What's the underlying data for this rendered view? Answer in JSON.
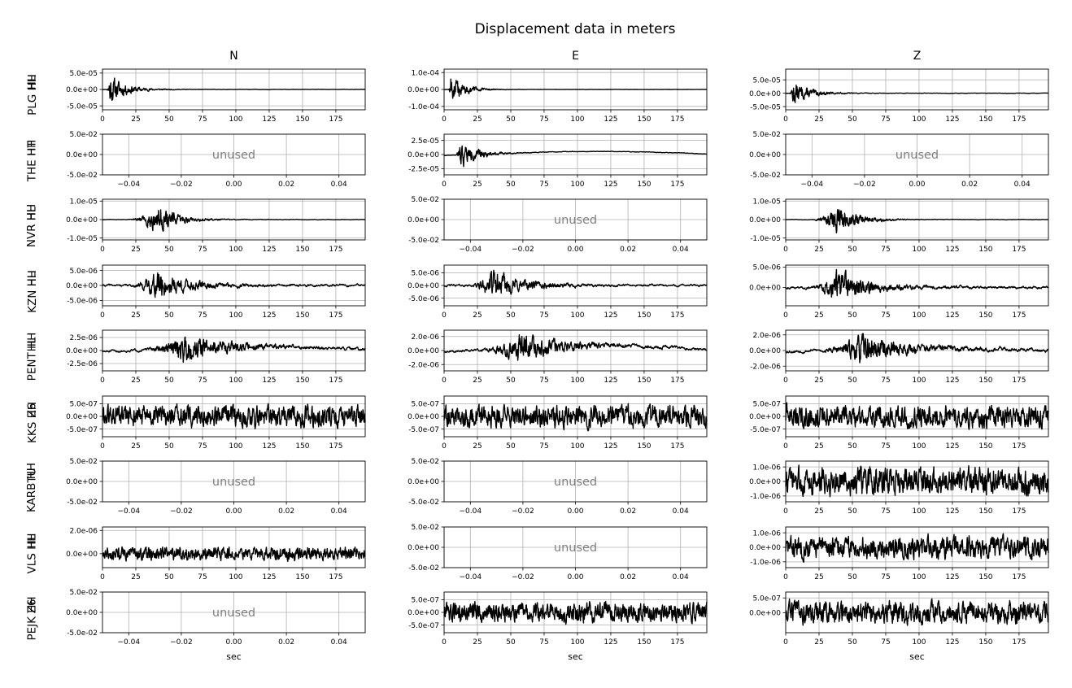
{
  "title": "Displacement data in meters",
  "columns": [
    "N",
    "E",
    "Z"
  ],
  "xlabel": "sec",
  "unused_label": "unused",
  "colors": {
    "trace": "#000000",
    "grid": "#b0b0b0",
    "unused_text": "#808080"
  },
  "chart_data": {
    "type": "line",
    "title": "Displacement data in meters",
    "xlabel": "sec",
    "ylabel": "",
    "grid": true,
    "time_axis_ticks": [
      0,
      25,
      50,
      75,
      100,
      125,
      150,
      175
    ],
    "time_axis_range": [
      0,
      197
    ],
    "unused_axis_ticks": [
      -0.04,
      -0.02,
      0.0,
      0.02,
      0.04
    ],
    "unused_axis_range": [
      -0.05,
      0.05
    ],
    "unused_y_ticks": [
      "5.0e-02",
      "0.0e+00",
      "-5.0e-02"
    ],
    "unused_y_range": [
      -0.05,
      0.05
    ],
    "stations": [
      {
        "network": "HL",
        "station": "PLG HH"
      },
      {
        "network": "HT",
        "station": "THE HH"
      },
      {
        "network": "HL",
        "station": "NVR HH"
      },
      {
        "network": "HL",
        "station": "KZN HH"
      },
      {
        "network": "HL",
        "station": "PENT HH"
      },
      {
        "network": "Z6",
        "station": "KKS HH"
      },
      {
        "network": "TU",
        "station": "KARB HH"
      },
      {
        "network": "HL",
        "station": "VLS HH"
      },
      {
        "network": "Z6",
        "station": "PEJK HH"
      }
    ],
    "panels": [
      [
        {
          "used": true,
          "yticks": [
            "5.0e-05",
            "0.0e+00",
            "-5.0e-05"
          ],
          "ytick_values": [
            5e-05,
            0,
            -5e-05
          ],
          "ylim": [
            -6.2e-05,
            6.2e-05
          ],
          "peak_time": 5,
          "peak_amp": 6e-05,
          "decay": 12,
          "onset": 3,
          "noise": 0.015,
          "drift": 0,
          "seed": 11
        },
        {
          "used": false
        },
        {
          "used": true,
          "yticks": [
            "1.0e-05",
            "0.0e+00",
            "-1.0e-05"
          ],
          "ytick_values": [
            1e-05,
            0,
            -1e-05
          ],
          "ylim": [
            -1.1e-05,
            1.1e-05
          ],
          "peak_time": 40,
          "peak_amp": 1.05e-05,
          "decay": 15,
          "onset": 18,
          "noise": 0.02,
          "drift": 0,
          "seed": 31
        },
        {
          "used": true,
          "yticks": [
            "5.0e-06",
            "0.0e+00",
            "-5.0e-06"
          ],
          "ytick_values": [
            5e-06,
            0,
            -5e-06
          ],
          "ylim": [
            -6.8e-06,
            6.8e-06
          ],
          "peak_time": 40,
          "peak_amp": 6.5e-06,
          "decay": 22,
          "onset": 20,
          "noise": 0.1,
          "drift": 0,
          "seed": 41
        },
        {
          "used": true,
          "yticks": [
            "2.5e-06",
            "0.0e+00",
            "-2.5e-06"
          ],
          "ytick_values": [
            2.5e-06,
            0,
            -2.5e-06
          ],
          "ylim": [
            -3.9e-06,
            3.9e-06
          ],
          "peak_time": 60,
          "peak_amp": 3.5e-06,
          "decay": 30,
          "onset": 30,
          "noise": 0.12,
          "drift": 0.2,
          "seed": 51
        },
        {
          "used": true,
          "yticks": [
            "5.0e-07",
            "0.0e+00",
            "-5.0e-07"
          ],
          "ytick_values": [
            5e-07,
            0,
            -5e-07
          ],
          "ylim": [
            -8e-07,
            8e-07
          ],
          "peak_time": 0,
          "peak_amp": 0,
          "decay": 1,
          "onset": 0,
          "noise": 0.6,
          "drift": 0,
          "seed": 61
        },
        {
          "used": false
        },
        {
          "used": true,
          "yticks": [
            "2.0e-06",
            "0.0e+00"
          ],
          "ytick_values": [
            2e-06,
            0
          ],
          "ylim": [
            -1.2e-06,
            2.3e-06
          ],
          "peak_time": 0,
          "peak_amp": 0,
          "decay": 1,
          "onset": 0,
          "noise": 0.28,
          "drift": 0,
          "seed": 81
        },
        {
          "used": false
        }
      ],
      [
        {
          "used": true,
          "yticks": [
            "1.0e-04",
            "0.0e+00",
            "-1.0e-04"
          ],
          "ytick_values": [
            0.0001,
            0,
            -0.0001
          ],
          "ylim": [
            -0.00012,
            0.00012
          ],
          "peak_time": 5,
          "peak_amp": 0.000115,
          "decay": 10,
          "onset": 3,
          "noise": 0.01,
          "drift": 0,
          "seed": 12
        },
        {
          "used": true,
          "yticks": [
            "2.5e-05",
            "0.0e+00",
            "-2.5e-05"
          ],
          "ytick_values": [
            2.5e-05,
            0,
            -2.5e-05
          ],
          "ylim": [
            -3.6e-05,
            3.6e-05
          ],
          "peak_time": 12,
          "peak_amp": 3e-05,
          "decay": 12,
          "onset": 8,
          "noise": 0.02,
          "drift": 0.15,
          "seed": 22
        },
        {
          "used": false
        },
        {
          "used": true,
          "yticks": [
            "5.0e-06",
            "0.0e+00",
            "-5.0e-06"
          ],
          "ytick_values": [
            5e-06,
            0,
            -5e-06
          ],
          "ylim": [
            -8e-06,
            8e-06
          ],
          "peak_time": 35,
          "peak_amp": 7.5e-06,
          "decay": 22,
          "onset": 18,
          "noise": 0.1,
          "drift": 0,
          "seed": 42
        },
        {
          "used": true,
          "yticks": [
            "2.0e-06",
            "0.0e+00",
            "-2.0e-06"
          ],
          "ytick_values": [
            2e-06,
            0,
            -2e-06
          ],
          "ylim": [
            -2.9e-06,
            2.9e-06
          ],
          "peak_time": 55,
          "peak_amp": 2.6e-06,
          "decay": 30,
          "onset": 25,
          "noise": 0.12,
          "drift": 0.25,
          "seed": 52
        },
        {
          "used": true,
          "yticks": [
            "5.0e-07",
            "0.0e+00",
            "-5.0e-07"
          ],
          "ytick_values": [
            5e-07,
            0,
            -5e-07
          ],
          "ylim": [
            -8e-07,
            8e-07
          ],
          "peak_time": 0,
          "peak_amp": 0,
          "decay": 1,
          "onset": 0,
          "noise": 0.6,
          "drift": 0,
          "seed": 62
        },
        {
          "used": false
        },
        {
          "used": false
        },
        {
          "used": true,
          "yticks": [
            "5.0e-07",
            "0.0e+00",
            "-5.0e-07"
          ],
          "ytick_values": [
            5e-07,
            0,
            -5e-07
          ],
          "ylim": [
            -8e-07,
            8e-07
          ],
          "peak_time": 0,
          "peak_amp": 0,
          "decay": 1,
          "onset": 0,
          "noise": 0.55,
          "drift": 0,
          "seed": 92
        }
      ],
      [
        {
          "used": true,
          "yticks": [
            "5.0e-05",
            "0.0e+00",
            "-5.0e-05"
          ],
          "ytick_values": [
            5e-05,
            0,
            -5e-05
          ],
          "ylim": [
            -6.2e-05,
            9e-05
          ],
          "peak_time": 5,
          "peak_amp": 6e-05,
          "decay": 12,
          "onset": 3,
          "noise": 0.015,
          "drift": 0,
          "seed": 13
        },
        {
          "used": false
        },
        {
          "used": true,
          "yticks": [
            "1.0e-05",
            "0.0e+00",
            "-1.0e-05"
          ],
          "ytick_values": [
            1e-05,
            0,
            -1e-05
          ],
          "ylim": [
            -1.1e-05,
            1.1e-05
          ],
          "peak_time": 38,
          "peak_amp": 1.05e-05,
          "decay": 15,
          "onset": 18,
          "noise": 0.02,
          "drift": 0,
          "seed": 33
        },
        {
          "used": true,
          "yticks": [
            "5.0e-06",
            "0.0e+00"
          ],
          "ytick_values": [
            5e-06,
            0
          ],
          "ylim": [
            -4.5e-06,
            5.5e-06
          ],
          "peak_time": 38,
          "peak_amp": 5.5e-06,
          "decay": 22,
          "onset": 18,
          "noise": 0.1,
          "drift": 0,
          "seed": 43
        },
        {
          "used": true,
          "yticks": [
            "2.0e-06",
            "0.0e+00",
            "-2.0e-06"
          ],
          "ytick_values": [
            2e-06,
            0,
            -2e-06
          ],
          "ylim": [
            -2.6e-06,
            2.6e-06
          ],
          "peak_time": 55,
          "peak_amp": 2.4e-06,
          "decay": 30,
          "onset": 25,
          "noise": 0.15,
          "drift": 0.1,
          "seed": 53
        },
        {
          "used": true,
          "yticks": [
            "5.0e-07",
            "0.0e+00",
            "-5.0e-07"
          ],
          "ytick_values": [
            5e-07,
            0,
            -5e-07
          ],
          "ylim": [
            -8e-07,
            8e-07
          ],
          "peak_time": 0,
          "peak_amp": 0,
          "decay": 1,
          "onset": 0,
          "noise": 0.6,
          "drift": 0,
          "seed": 63
        },
        {
          "used": true,
          "yticks": [
            "1.0e-06",
            "0.0e+00",
            "-1.0e-06"
          ],
          "ytick_values": [
            1e-06,
            0,
            -1e-06
          ],
          "ylim": [
            -1.4e-06,
            1.4e-06
          ],
          "peak_time": 0,
          "peak_amp": 0,
          "decay": 1,
          "onset": 0,
          "noise": 0.75,
          "drift": 0,
          "seed": 73
        },
        {
          "used": true,
          "yticks": [
            "1.0e-06",
            "0.0e+00",
            "-1.0e-06"
          ],
          "ytick_values": [
            1e-06,
            0,
            -1e-06
          ],
          "ylim": [
            -1.4e-06,
            1.4e-06
          ],
          "peak_time": 0,
          "peak_amp": 0,
          "decay": 1,
          "onset": 0,
          "noise": 0.6,
          "drift": 0,
          "seed": 83
        },
        {
          "used": true,
          "yticks": [
            "5.0e-07",
            "0.0e+00"
          ],
          "ytick_values": [
            5e-07,
            0
          ],
          "ylim": [
            -6.8e-07,
            7e-07
          ],
          "peak_time": 0,
          "peak_amp": 0,
          "decay": 1,
          "onset": 0,
          "noise": 0.6,
          "drift": 0,
          "seed": 93
        }
      ]
    ]
  }
}
